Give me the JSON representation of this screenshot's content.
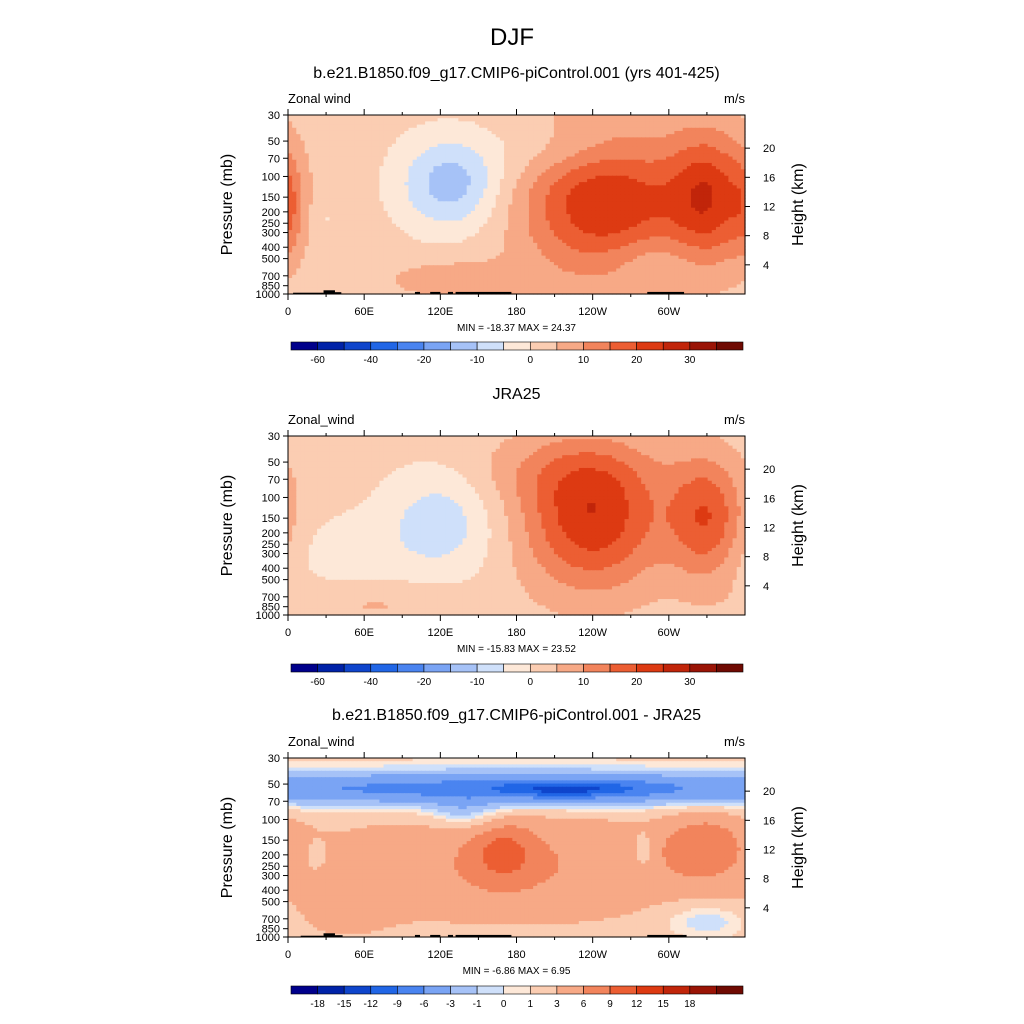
{
  "figure": {
    "title": "DJF"
  },
  "chart_data": [
    {
      "type": "heatmap",
      "title": "b.e21.B1850.f09_g17.CMIP6-piControl.001 (yrs 401-425)",
      "left_label": "Zonal wind",
      "right_label": "m/s",
      "xlabel": "",
      "ylabel": "Pressure (mb)",
      "ylabel_right": "Height (km)",
      "x_ticks": [
        "0",
        "60E",
        "120E",
        "180",
        "120W",
        "60W"
      ],
      "x_tick_values": [
        0,
        60,
        120,
        180,
        240,
        300
      ],
      "xlim": [
        0,
        360
      ],
      "y_ticks": [
        "30",
        "50",
        "70",
        "100",
        "150",
        "200",
        "250",
        "300",
        "400",
        "500",
        "700",
        "850",
        "1000"
      ],
      "y_tick_values": [
        30,
        50,
        70,
        100,
        150,
        200,
        250,
        300,
        400,
        500,
        700,
        850,
        1000
      ],
      "ylim": [
        1000,
        30
      ],
      "y_scale": "log",
      "y_ticks_right": [
        "4",
        "8",
        "12",
        "16",
        "20"
      ],
      "stats": "MIN = -18.37  MAX =  24.37",
      "min": -18.37,
      "max": 24.37,
      "levels": [
        -70,
        -60,
        -50,
        -40,
        -30,
        -20,
        -15,
        -10,
        -5,
        0,
        5,
        10,
        15,
        20,
        25,
        30,
        35
      ],
      "colorbar_labels": [
        "-60",
        "-40",
        "-20",
        "-10",
        "0",
        "10",
        "20",
        "30"
      ],
      "colors": [
        "#00008b",
        "#0022a8",
        "#0f45cc",
        "#2166e6",
        "#4a84f0",
        "#7aa4f4",
        "#a6c2f7",
        "#cfe0fa",
        "#fde8d8",
        "#fbcdb2",
        "#f7a986",
        "#f2845c",
        "#ec5e33",
        "#dd3a12",
        "#c1250a",
        "#9a1406",
        "#6f0a02"
      ],
      "land_blocks": [
        {
          "x0": 4,
          "x1": 28,
          "top": 975
        },
        {
          "x0": 28,
          "x1": 37,
          "top": 930
        },
        {
          "x0": 37,
          "x1": 42,
          "top": 965
        },
        {
          "x0": 100,
          "x1": 104,
          "top": 960
        },
        {
          "x0": 112,
          "x1": 120,
          "top": 960
        },
        {
          "x0": 126,
          "x1": 130,
          "top": 960
        },
        {
          "x0": 132,
          "x1": 176,
          "top": 960
        },
        {
          "x0": 283,
          "x1": 312,
          "top": 960
        }
      ],
      "features": [
        {
          "lon": 250,
          "p": 160,
          "value": 23,
          "rx": 65,
          "ry": 1.5
        },
        {
          "lon": 332,
          "p": 150,
          "value": 19,
          "rx": 32,
          "ry": 1.3
        },
        {
          "lon": 128,
          "p": 115,
          "value": -15,
          "rx": 40,
          "ry": 0.9
        },
        {
          "lon": 28,
          "p": 230,
          "value": -3,
          "rx": 12,
          "ry": 0.3
        },
        {
          "lon": 130,
          "p": 750,
          "value": 6,
          "rx": 55,
          "ry": 0.4
        },
        {
          "lon": 225,
          "p": 60,
          "value": -6,
          "rx": 60,
          "ry": 0.6
        },
        {
          "lon": 0,
          "p": 180,
          "value": 7,
          "rx": 12,
          "ry": 1.0
        },
        {
          "lon": 285,
          "p": 500,
          "value": -4,
          "rx": 40,
          "ry": 0.5
        }
      ],
      "base_value": 2
    },
    {
      "type": "heatmap",
      "title": "JRA25",
      "left_label": "Zonal_wind",
      "right_label": "m/s",
      "xlabel": "",
      "ylabel": "Pressure (mb)",
      "ylabel_right": "Height (km)",
      "x_ticks": [
        "0",
        "60E",
        "120E",
        "180",
        "120W",
        "60W"
      ],
      "x_tick_values": [
        0,
        60,
        120,
        180,
        240,
        300
      ],
      "xlim": [
        0,
        360
      ],
      "y_ticks": [
        "30",
        "50",
        "70",
        "100",
        "150",
        "200",
        "250",
        "300",
        "400",
        "500",
        "700",
        "850",
        "1000"
      ],
      "y_tick_values": [
        30,
        50,
        70,
        100,
        150,
        200,
        250,
        300,
        400,
        500,
        700,
        850,
        1000
      ],
      "ylim": [
        1000,
        30
      ],
      "y_scale": "log",
      "y_ticks_right": [
        "4",
        "8",
        "12",
        "16",
        "20"
      ],
      "stats": "MIN = -15.83  MAX =  23.52",
      "min": -15.83,
      "max": 23.52,
      "levels": [
        -70,
        -60,
        -50,
        -40,
        -30,
        -20,
        -15,
        -10,
        -5,
        0,
        5,
        10,
        15,
        20,
        25,
        30,
        35
      ],
      "colorbar_labels": [
        "-60",
        "-40",
        "-20",
        "-10",
        "0",
        "10",
        "20",
        "30"
      ],
      "colors": [
        "#00008b",
        "#0022a8",
        "#0f45cc",
        "#2166e6",
        "#4a84f0",
        "#7aa4f4",
        "#a6c2f7",
        "#cfe0fa",
        "#fde8d8",
        "#fbcdb2",
        "#f7a986",
        "#f2845c",
        "#ec5e33",
        "#dd3a12",
        "#c1250a",
        "#9a1406",
        "#6f0a02"
      ],
      "land_blocks": [],
      "features": [
        {
          "lon": 240,
          "p": 150,
          "value": 22,
          "rx": 55,
          "ry": 1.4
        },
        {
          "lon": 330,
          "p": 150,
          "value": 17,
          "rx": 30,
          "ry": 1.2
        },
        {
          "lon": 120,
          "p": 160,
          "value": -10,
          "rx": 45,
          "ry": 1.1
        },
        {
          "lon": 40,
          "p": 300,
          "value": -4,
          "rx": 50,
          "ry": 0.8
        },
        {
          "lon": 70,
          "p": 800,
          "value": 4,
          "rx": 70,
          "ry": 0.4
        },
        {
          "lon": 210,
          "p": 60,
          "value": 5,
          "rx": 80,
          "ry": 0.7
        }
      ],
      "base_value": 2
    },
    {
      "type": "heatmap",
      "title": "b.e21.B1850.f09_g17.CMIP6-piControl.001 - JRA25",
      "left_label": "Zonal_wind",
      "right_label": "m/s",
      "xlabel": "",
      "ylabel": "Pressure (mb)",
      "ylabel_right": "Height (km)",
      "x_ticks": [
        "0",
        "60E",
        "120E",
        "180",
        "120W",
        "60W"
      ],
      "x_tick_values": [
        0,
        60,
        120,
        180,
        240,
        300
      ],
      "xlim": [
        0,
        360
      ],
      "y_ticks": [
        "30",
        "50",
        "70",
        "100",
        "150",
        "200",
        "250",
        "300",
        "400",
        "500",
        "700",
        "850",
        "1000"
      ],
      "y_tick_values": [
        30,
        50,
        70,
        100,
        150,
        200,
        250,
        300,
        400,
        500,
        700,
        850,
        1000
      ],
      "ylim": [
        1000,
        30
      ],
      "y_scale": "log",
      "y_ticks_right": [
        "4",
        "8",
        "12",
        "16",
        "20"
      ],
      "stats": "MIN = -6.86  MAX =  6.95",
      "min": -6.86,
      "max": 6.95,
      "levels": [
        -21,
        -18,
        -15,
        -12,
        -9,
        -6,
        -3,
        -1,
        0,
        1,
        3,
        6,
        9,
        12,
        15,
        18,
        21
      ],
      "colorbar_labels": [
        "-18",
        "-15",
        "-12",
        "-9",
        "-6",
        "-3",
        "-1",
        "0",
        "1",
        "3",
        "6",
        "9",
        "12",
        "15",
        "18"
      ],
      "colors": [
        "#00008b",
        "#0022a8",
        "#0f45cc",
        "#2166e6",
        "#4a84f0",
        "#7aa4f4",
        "#a6c2f7",
        "#cfe0fa",
        "#fde8d8",
        "#fbcdb2",
        "#f7a986",
        "#f2845c",
        "#ec5e33",
        "#dd3a12",
        "#c1250a",
        "#9a1406",
        "#6f0a02"
      ],
      "land_blocks": [
        {
          "x0": 10,
          "x1": 28,
          "top": 975
        },
        {
          "x0": 28,
          "x1": 37,
          "top": 930
        },
        {
          "x0": 37,
          "x1": 43,
          "top": 965
        },
        {
          "x0": 100,
          "x1": 104,
          "top": 960
        },
        {
          "x0": 112,
          "x1": 120,
          "top": 960
        },
        {
          "x0": 126,
          "x1": 130,
          "top": 960
        },
        {
          "x0": 132,
          "x1": 176,
          "top": 960
        },
        {
          "x0": 283,
          "x1": 314,
          "top": 960
        }
      ],
      "features": [
        {
          "lon": 180,
          "p": 55,
          "value": -4.5,
          "rx": 200,
          "ry": 0.35
        },
        {
          "lon": 220,
          "p": 55,
          "value": -6.5,
          "rx": 50,
          "ry": 0.15
        },
        {
          "lon": 140,
          "p": 90,
          "value": -3.5,
          "rx": 30,
          "ry": 0.3
        },
        {
          "lon": 180,
          "p": 250,
          "value": 4.5,
          "rx": 160,
          "ry": 1.1
        },
        {
          "lon": 170,
          "p": 190,
          "value": 5,
          "rx": 25,
          "ry": 0.6
        },
        {
          "lon": 330,
          "p": 170,
          "value": 5.5,
          "rx": 35,
          "ry": 0.7
        },
        {
          "lon": 22,
          "p": 200,
          "value": -2.5,
          "rx": 6,
          "ry": 0.25
        },
        {
          "lon": 280,
          "p": 190,
          "value": -3,
          "rx": 8,
          "ry": 0.4
        },
        {
          "lon": 330,
          "p": 720,
          "value": -3,
          "rx": 35,
          "ry": 0.35
        },
        {
          "lon": 40,
          "p": 600,
          "value": 2.5,
          "rx": 40,
          "ry": 0.5
        }
      ],
      "base_value": 1.5,
      "stratosphere_value": -3.5
    }
  ]
}
